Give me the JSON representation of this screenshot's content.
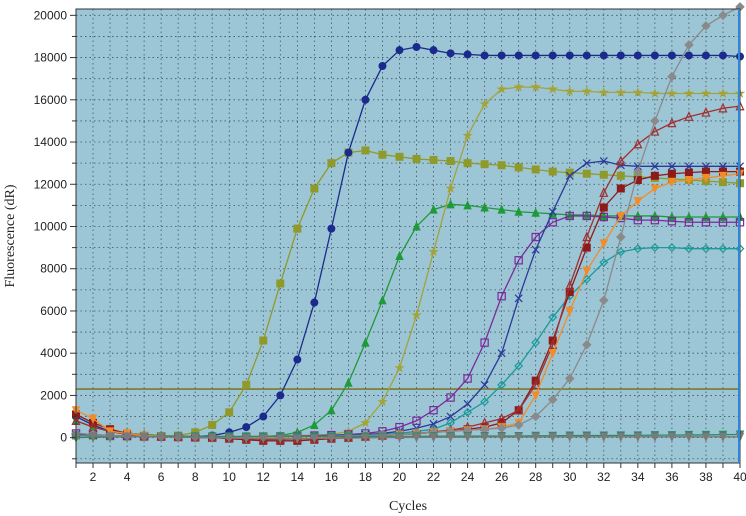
{
  "chart_data": {
    "type": "line",
    "title": "",
    "xlabel": "Cycles",
    "ylabel": "Fluorescence (dR)",
    "xlim": [
      1,
      40
    ],
    "ylim": [
      -1200,
      20300
    ],
    "x_ticks": [
      2,
      4,
      6,
      8,
      10,
      12,
      14,
      16,
      18,
      20,
      22,
      24,
      26,
      28,
      30,
      32,
      34,
      36,
      38,
      40
    ],
    "y_ticks": [
      0,
      2000,
      4000,
      6000,
      8000,
      10000,
      12000,
      14000,
      16000,
      18000,
      20000
    ],
    "grid": true,
    "legend": "none",
    "plot_background": "#9cc6d6",
    "threshold": {
      "value": 2300,
      "color": "#7d7a2a"
    },
    "x": [
      1,
      2,
      3,
      4,
      5,
      6,
      7,
      8,
      9,
      10,
      11,
      12,
      13,
      14,
      15,
      16,
      17,
      18,
      19,
      20,
      21,
      22,
      23,
      24,
      25,
      26,
      27,
      28,
      29,
      30,
      31,
      32,
      33,
      34,
      35,
      36,
      37,
      38,
      39,
      40
    ],
    "series": [
      {
        "color": "#8f9a2a",
        "marker": "square",
        "values": [
          100,
          80,
          60,
          50,
          40,
          50,
          100,
          250,
          600,
          1200,
          2500,
          4600,
          7300,
          9900,
          11800,
          13000,
          13500,
          13600,
          13400,
          13300,
          13200,
          13150,
          13100,
          13000,
          12950,
          12900,
          12800,
          12700,
          12600,
          12550,
          12500,
          12450,
          12400,
          12350,
          12300,
          12250,
          12200,
          12150,
          12100,
          12050
        ]
      },
      {
        "color": "#1b2a8c",
        "marker": "circle",
        "values": [
          1000,
          600,
          300,
          150,
          100,
          50,
          30,
          50,
          100,
          250,
          500,
          1000,
          2000,
          3700,
          6400,
          9900,
          13500,
          16000,
          17600,
          18350,
          18500,
          18350,
          18200,
          18150,
          18100,
          18100,
          18100,
          18100,
          18100,
          18100,
          18100,
          18100,
          18100,
          18100,
          18100,
          18100,
          18100,
          18100,
          18100,
          18050
        ]
      },
      {
        "color": "#1f9a3a",
        "marker": "triangle",
        "values": [
          800,
          500,
          300,
          200,
          150,
          100,
          80,
          60,
          50,
          50,
          50,
          60,
          100,
          250,
          600,
          1300,
          2600,
          4500,
          6500,
          8600,
          10000,
          10800,
          11050,
          11000,
          10900,
          10800,
          10700,
          10650,
          10600,
          10550,
          10550,
          10500,
          10500,
          10500,
          10500,
          10450,
          10450,
          10450,
          10450,
          10450
        ]
      },
      {
        "color": "#a3a33a",
        "marker": "star",
        "values": [
          100,
          80,
          60,
          50,
          40,
          40,
          40,
          40,
          40,
          40,
          50,
          60,
          80,
          100,
          120,
          150,
          300,
          700,
          1700,
          3300,
          5800,
          8800,
          11800,
          14300,
          15800,
          16500,
          16600,
          16600,
          16500,
          16400,
          16400,
          16350,
          16350,
          16350,
          16300,
          16300,
          16300,
          16300,
          16300,
          16300
        ]
      },
      {
        "color": "#7a2a9a",
        "marker": "open-square",
        "values": [
          200,
          150,
          100,
          80,
          60,
          50,
          40,
          40,
          40,
          40,
          40,
          50,
          60,
          80,
          100,
          120,
          150,
          200,
          300,
          500,
          800,
          1300,
          1900,
          2800,
          4500,
          6700,
          8400,
          9500,
          10200,
          10500,
          10500,
          10450,
          10400,
          10300,
          10300,
          10250,
          10200,
          10200,
          10200,
          10200
        ]
      },
      {
        "color": "#2a3a9a",
        "marker": "x",
        "values": [
          150,
          120,
          100,
          80,
          60,
          50,
          40,
          40,
          40,
          40,
          40,
          40,
          50,
          60,
          80,
          100,
          120,
          150,
          200,
          300,
          450,
          650,
          1000,
          1600,
          2500,
          4000,
          6600,
          8900,
          10700,
          12400,
          13000,
          13100,
          12900,
          12850,
          12850,
          12850,
          12850,
          12850,
          12850,
          12850
        ]
      },
      {
        "color": "#1a9a9a",
        "marker": "open-diamond",
        "values": [
          100,
          80,
          60,
          50,
          40,
          40,
          40,
          40,
          40,
          40,
          40,
          40,
          50,
          60,
          70,
          80,
          100,
          120,
          150,
          200,
          300,
          400,
          700,
          1200,
          1700,
          2500,
          3400,
          4500,
          5700,
          6700,
          7500,
          8300,
          8800,
          8950,
          9000,
          9000,
          8950,
          8950,
          8950,
          8950
        ]
      },
      {
        "color": "#8f1a1a",
        "marker": "square",
        "values": [
          1100,
          700,
          400,
          200,
          100,
          60,
          30,
          10,
          0,
          -50,
          -100,
          -150,
          -150,
          -150,
          -100,
          -50,
          0,
          50,
          100,
          150,
          180,
          250,
          300,
          400,
          500,
          700,
          1300,
          2700,
          4600,
          6900,
          9000,
          10900,
          11800,
          12200,
          12400,
          12500,
          12550,
          12600,
          12600,
          12600
        ]
      },
      {
        "color": "#a03030",
        "marker": "open-triangle",
        "values": [
          800,
          500,
          300,
          150,
          80,
          50,
          30,
          10,
          0,
          -20,
          -50,
          -80,
          -80,
          -60,
          -40,
          -20,
          0,
          50,
          100,
          150,
          200,
          280,
          350,
          500,
          700,
          900,
          1300,
          2500,
          4400,
          7200,
          9500,
          11600,
          13100,
          13900,
          14500,
          14900,
          15200,
          15400,
          15600,
          15700
        ]
      },
      {
        "color": "#f28c28",
        "marker": "inverted-triangle",
        "values": [
          1300,
          900,
          300,
          200,
          100,
          80,
          60,
          40,
          30,
          20,
          20,
          20,
          20,
          30,
          40,
          50,
          60,
          80,
          100,
          150,
          200,
          250,
          300,
          350,
          400,
          500,
          700,
          2000,
          4000,
          6000,
          7900,
          9200,
          10500,
          11200,
          11800,
          12100,
          12200,
          12300,
          12400,
          12500
        ]
      },
      {
        "color": "#8a8a8a",
        "marker": "diamond",
        "values": [
          200,
          150,
          100,
          80,
          60,
          50,
          40,
          40,
          40,
          40,
          40,
          40,
          40,
          50,
          60,
          70,
          80,
          100,
          120,
          150,
          200,
          250,
          300,
          350,
          400,
          450,
          600,
          1000,
          1800,
          2800,
          4400,
          6500,
          9500,
          12600,
          15000,
          17100,
          18600,
          19500,
          20000,
          20400
        ]
      },
      {
        "color": "#2a8a6a",
        "marker": "inverted-triangle",
        "values": [
          0,
          20,
          30,
          40,
          50,
          60,
          60,
          60,
          60,
          60,
          60,
          60,
          60,
          60,
          60,
          60,
          60,
          60,
          60,
          60,
          60,
          70,
          70,
          70,
          80,
          80,
          80,
          90,
          90,
          100,
          100,
          100,
          110,
          110,
          120,
          120,
          130,
          130,
          140,
          150
        ]
      },
      {
        "color": "#7a7a7a",
        "marker": "inverted-triangle",
        "values": [
          100,
          80,
          60,
          50,
          40,
          30,
          20,
          10,
          0,
          -20,
          -30,
          -40,
          -50,
          -50,
          -40,
          -30,
          -20,
          -10,
          0,
          10,
          10,
          20,
          20,
          20,
          30,
          30,
          30,
          30,
          30,
          40,
          40,
          40,
          40,
          40,
          40,
          40,
          40,
          40,
          40,
          40
        ]
      }
    ]
  }
}
